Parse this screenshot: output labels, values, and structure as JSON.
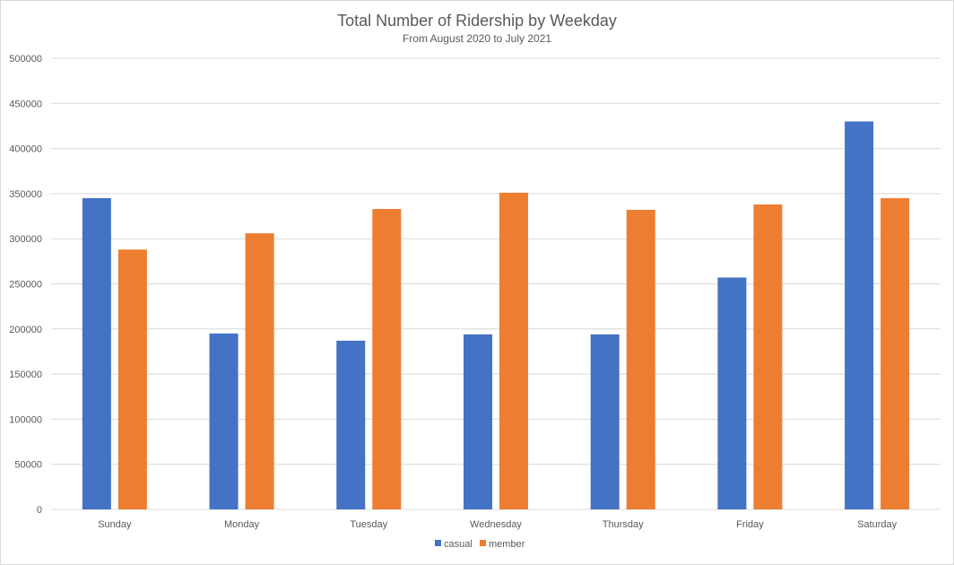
{
  "chart_data": {
    "type": "bar",
    "title": "Total Number of Ridership by Weekday",
    "subtitle": "From August 2020 to July 2021",
    "xlabel": "",
    "ylabel": "",
    "categories": [
      "Sunday",
      "Monday",
      "Tuesday",
      "Wednesday",
      "Thursday",
      "Friday",
      "Saturday"
    ],
    "series": [
      {
        "name": "casual",
        "color": "#4472c4",
        "values": [
          345000,
          195000,
          187000,
          194000,
          194000,
          257000,
          430000
        ]
      },
      {
        "name": "member",
        "color": "#ed7d31",
        "values": [
          288000,
          306000,
          333000,
          351000,
          332000,
          338000,
          345000
        ]
      }
    ],
    "ylim": [
      0,
      500000
    ],
    "yticks": [
      0,
      50000,
      100000,
      150000,
      200000,
      250000,
      300000,
      350000,
      400000,
      450000,
      500000
    ],
    "ytick_labels": [
      "0",
      "50000",
      "100000",
      "150000",
      "200000",
      "250000",
      "300000",
      "350000",
      "400000",
      "450000",
      "500000"
    ],
    "grid": true,
    "legend_position": "bottom"
  }
}
